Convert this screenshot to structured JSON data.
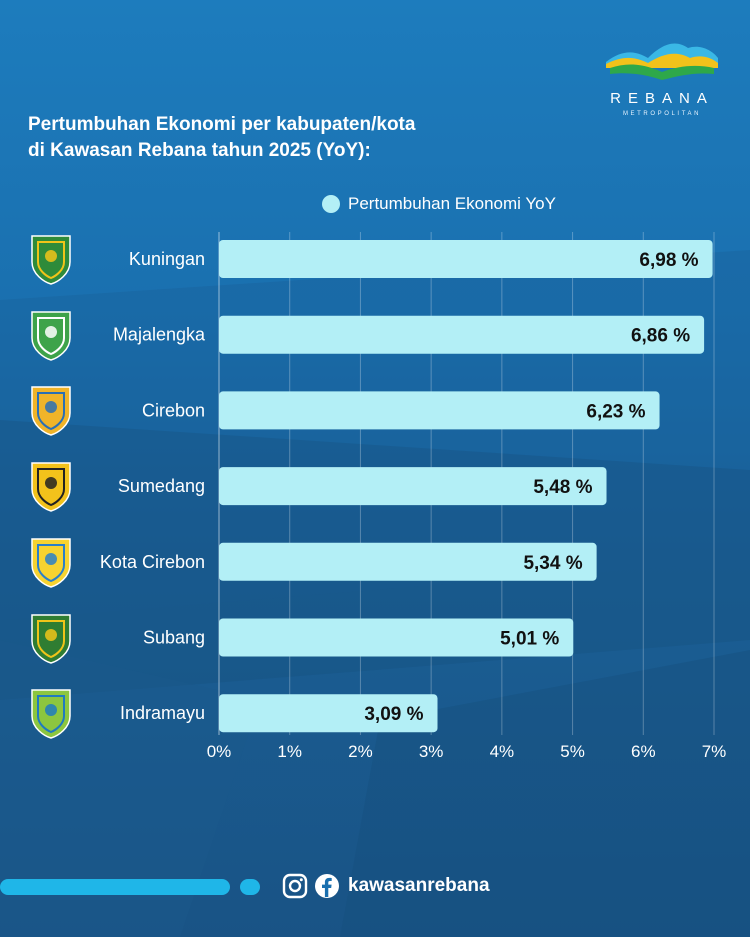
{
  "brand": {
    "name": "REBANA",
    "tagline": "METROPOLITAN",
    "colors": {
      "wave_yellow": "#f2c21b",
      "wave_green": "#2ea84a",
      "wave_blue": "#3ab8e6"
    }
  },
  "title_line1": "Pertumbuhan Ekonomi per kabupaten/kota",
  "title_line2": "di Kawasan Rebana tahun 2025 (YoY):",
  "legend_label": "Pertumbuhan Ekonomi YoY",
  "chart_data": {
    "type": "bar",
    "orientation": "horizontal",
    "categories": [
      "Kuningan",
      "Majalengka",
      "Cirebon",
      "Sumedang",
      "Kota Cirebon",
      "Subang",
      "Indramayu"
    ],
    "series": [
      {
        "name": "Pertumbuhan Ekonomi YoY",
        "values": [
          6.98,
          6.86,
          6.23,
          5.48,
          5.34,
          5.01,
          3.09
        ],
        "labels": [
          "6,98 %",
          "6,86 %",
          "6,23 %",
          "5,48 %",
          "5,34 %",
          "5,01 %",
          "3,09 %"
        ],
        "color": "#b3eff6"
      }
    ],
    "xlim": [
      0,
      7
    ],
    "xticks": [
      "0%",
      "1%",
      "2%",
      "3%",
      "4%",
      "5%",
      "6%",
      "7%"
    ],
    "grid": true,
    "legend_position": "top"
  },
  "emblems": [
    {
      "name": "kuningan-emblem-icon",
      "fill": "#2e8b3a",
      "accent": "#f0c419"
    },
    {
      "name": "majalengka-emblem-icon",
      "fill": "#3ea34a",
      "accent": "#ffffff"
    },
    {
      "name": "cirebon-emblem-icon",
      "fill": "#f0b429",
      "accent": "#2a6fb5"
    },
    {
      "name": "sumedang-emblem-icon",
      "fill": "#f2c21b",
      "accent": "#222222"
    },
    {
      "name": "kota-cirebon-emblem-icon",
      "fill": "#f7d330",
      "accent": "#2a7fc9"
    },
    {
      "name": "subang-emblem-icon",
      "fill": "#2f7d32",
      "accent": "#f0c419"
    },
    {
      "name": "indramayu-emblem-icon",
      "fill": "#8cc63f",
      "accent": "#1f7ac0"
    }
  ],
  "footer": {
    "handle": "kawasanrebana",
    "icons": [
      "instagram-icon",
      "facebook-icon"
    ]
  }
}
